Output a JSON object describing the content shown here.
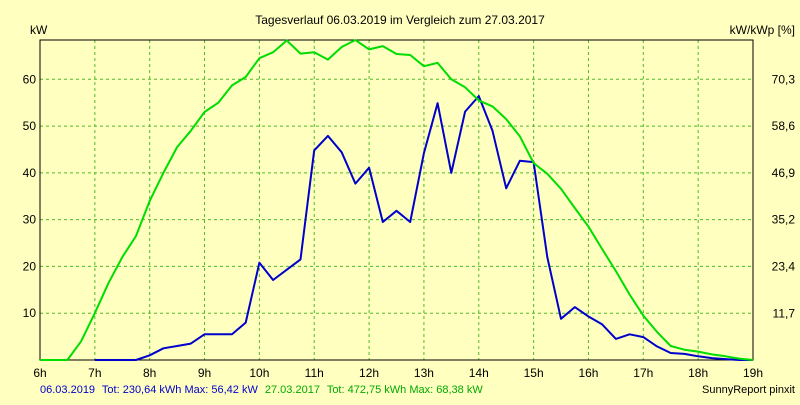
{
  "chart_data": {
    "type": "line",
    "title": "Tagesverlauf 06.03.2019 im Vergleich zum 27.03.2017",
    "ylabel_left": "kW",
    "ylabel_right": "kW/kWp [%]",
    "xlim": [
      6,
      19
    ],
    "ylim": [
      0,
      68.4
    ],
    "grid": true,
    "x_ticks": [
      6,
      7,
      8,
      9,
      10,
      11,
      12,
      13,
      14,
      15,
      16,
      17,
      18,
      19
    ],
    "x_tick_labels": [
      "6h",
      "7h",
      "8h",
      "9h",
      "10h",
      "11h",
      "12h",
      "13h",
      "14h",
      "15h",
      "16h",
      "17h",
      "18h",
      "19h"
    ],
    "y_left_ticks": [
      10,
      20,
      30,
      40,
      50,
      60
    ],
    "y_left_tick_labels": [
      "10",
      "20",
      "30",
      "40",
      "50",
      "60"
    ],
    "y_right_ticks": [
      11.7,
      23.4,
      35.2,
      46.9,
      58.6,
      70.3
    ],
    "y_right_tick_labels": [
      "11,7",
      "23,4",
      "35,2",
      "46,9",
      "58,6",
      "70,3"
    ],
    "series": [
      {
        "name": "06.03.2019",
        "color": "#0000cc",
        "x": [
          7.0,
          7.75,
          8.0,
          8.25,
          8.5,
          8.75,
          9.0,
          9.25,
          9.5,
          9.75,
          10.0,
          10.25,
          10.5,
          10.75,
          11.0,
          11.25,
          11.5,
          11.75,
          12.0,
          12.25,
          12.5,
          12.75,
          13.0,
          13.25,
          13.5,
          13.75,
          14.0,
          14.25,
          14.5,
          14.75,
          15.0,
          15.25,
          15.5,
          15.75,
          16.0,
          16.25,
          16.5,
          16.75,
          17.0,
          17.25,
          17.5,
          17.75,
          18.0,
          18.25,
          18.5,
          18.75,
          19.0
        ],
        "y": [
          0,
          0,
          1,
          2.5,
          3,
          3.5,
          5.5,
          5.5,
          5.5,
          8,
          20.8,
          17.1,
          19.3,
          21.5,
          44.8,
          47.9,
          44.4,
          37.7,
          41.1,
          29.5,
          31.9,
          29.5,
          44.2,
          54.9,
          40.0,
          53.1,
          56.4,
          49.0,
          36.7,
          42.6,
          42.3,
          22.0,
          8.8,
          11.3,
          9.3,
          7.6,
          4.5,
          5.5,
          4.9,
          2.9,
          1.5,
          1.3,
          0.8,
          0.4,
          0.2,
          0,
          0
        ]
      },
      {
        "name": "27.03.2017",
        "color": "#00dd00",
        "x": [
          6.0,
          6.5,
          6.75,
          7.0,
          7.25,
          7.5,
          7.75,
          8.0,
          8.25,
          8.5,
          8.75,
          9.0,
          9.25,
          9.5,
          9.75,
          10.0,
          10.25,
          10.5,
          10.75,
          11.0,
          11.25,
          11.5,
          11.75,
          12.0,
          12.25,
          12.5,
          12.75,
          13.0,
          13.25,
          13.5,
          13.75,
          14.0,
          14.25,
          14.5,
          14.75,
          15.0,
          15.25,
          15.5,
          15.75,
          16.0,
          16.25,
          16.5,
          16.75,
          17.0,
          17.25,
          17.5,
          17.75,
          18.0,
          18.25,
          18.5,
          18.75,
          19.0
        ],
        "y": [
          0,
          0,
          4,
          10,
          16.5,
          22,
          26.5,
          34,
          40,
          45.5,
          49,
          53,
          55,
          58.7,
          60.5,
          64.5,
          65.8,
          68.3,
          65.5,
          65.8,
          64.2,
          66.9,
          68.4,
          66.4,
          67.1,
          65.4,
          65.2,
          62.8,
          63.5,
          60,
          58.3,
          55.5,
          54.2,
          51.5,
          47.8,
          42.1,
          39.8,
          36.6,
          32.5,
          28.5,
          23.7,
          19.0,
          14.0,
          9.5,
          6.0,
          3.0,
          2.2,
          1.8,
          1.2,
          0.8,
          0.3,
          0
        ]
      }
    ]
  },
  "footer": {
    "legend_date_1": "06.03.2019",
    "legend_stats_1": "Tot: 230,64 kWh Max: 56,42 kW",
    "legend_date_2": "27.03.2017",
    "legend_stats_2": "Tot: 472,75 kWh Max: 68,38 kW",
    "brand": "SunnyReport pinxit"
  },
  "colors": {
    "background": "#ffffc0",
    "grid": "#4dbb2b",
    "axis": "#000000",
    "series_1": "#0000cc",
    "series_2": "#00dd00"
  }
}
